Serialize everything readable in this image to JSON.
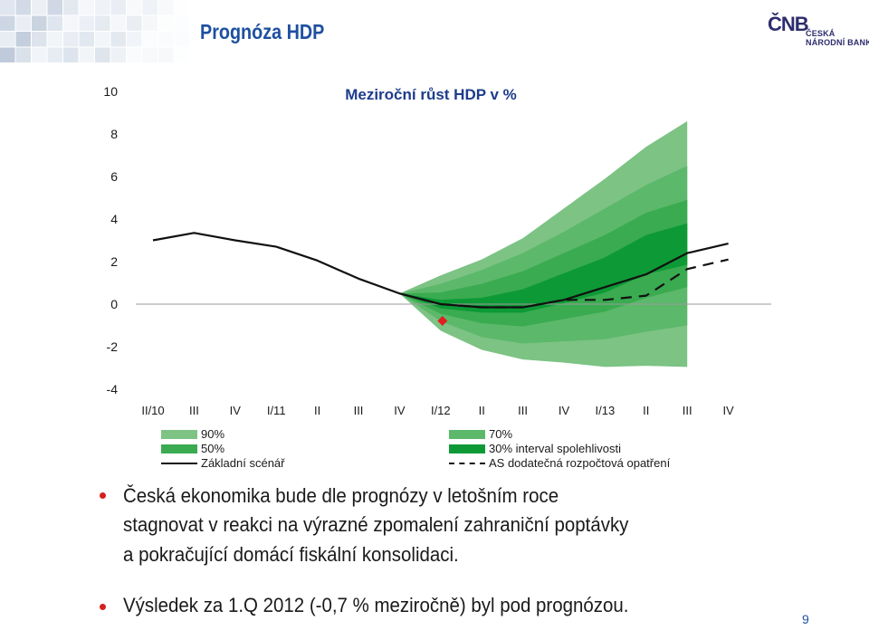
{
  "slide": {
    "title": "Prognóza HDP",
    "page_number": "9",
    "logo": {
      "mark": "ČNB",
      "line1": "ČESKÁ",
      "line2": "NÁRODNÍ BANKA"
    }
  },
  "chart_data": {
    "type": "area",
    "title": "Meziroční růst HDP v %",
    "xlabel": "",
    "ylabel": "",
    "categories": [
      "II/10",
      "III",
      "IV",
      "I/11",
      "II",
      "III",
      "IV",
      "I/12",
      "II",
      "III",
      "IV",
      "I/13",
      "II",
      "III",
      "IV"
    ],
    "ylim": [
      -4,
      10
    ],
    "yticks": [
      -4,
      -2,
      0,
      2,
      4,
      6,
      8,
      10
    ],
    "grid": false,
    "legend_position": "bottom",
    "legend": [
      {
        "label": "90%",
        "kind": "band",
        "color": "#7cc384"
      },
      {
        "label": "70%",
        "kind": "band",
        "color": "#5cb86a"
      },
      {
        "label": "50%",
        "kind": "band",
        "color": "#3aab50"
      },
      {
        "label": "30% interval spolehlivosti",
        "kind": "band",
        "color": "#0d9a36"
      },
      {
        "label": "Základní scénář",
        "kind": "line",
        "color": "#111111"
      },
      {
        "label": "AS dodatečná rozpočtová opatření",
        "kind": "dashed",
        "color": "#111111"
      }
    ],
    "series": [
      {
        "name": "Základní scénář",
        "values": [
          3.0,
          3.35,
          3.0,
          2.7,
          2.05,
          1.2,
          0.5,
          0.0,
          -0.15,
          -0.15,
          0.2,
          0.8,
          1.4,
          2.4,
          2.85
        ]
      },
      {
        "name": "AS dodatečná rozpočtová opatření",
        "values": [
          null,
          null,
          null,
          null,
          null,
          null,
          null,
          0.0,
          -0.15,
          -0.15,
          0.2,
          0.2,
          0.4,
          1.65,
          2.1
        ]
      }
    ],
    "bands": [
      {
        "name": "90%",
        "start_index": 6,
        "upper": [
          0.5,
          1.35,
          2.1,
          3.1,
          4.5,
          5.9,
          7.4,
          8.6
        ],
        "lower": [
          0.5,
          -1.25,
          -2.15,
          -2.6,
          -2.75,
          -2.95,
          -2.9,
          -2.95
        ]
      },
      {
        "name": "70%",
        "start_index": 6,
        "upper": [
          0.5,
          0.95,
          1.6,
          2.4,
          3.4,
          4.5,
          5.6,
          6.5
        ],
        "lower": [
          0.5,
          -0.8,
          -1.55,
          -1.85,
          -1.75,
          -1.65,
          -1.3,
          -1.0
        ]
      },
      {
        "name": "50%",
        "start_index": 6,
        "upper": [
          0.5,
          0.55,
          0.95,
          1.55,
          2.4,
          3.25,
          4.3,
          4.9
        ],
        "lower": [
          0.5,
          -0.45,
          -0.9,
          -1.05,
          -0.7,
          -0.35,
          0.3,
          0.8
        ]
      },
      {
        "name": "30% interval spolehlivosti",
        "start_index": 6,
        "upper": [
          0.5,
          0.2,
          0.3,
          0.7,
          1.45,
          2.2,
          3.25,
          3.8
        ],
        "lower": [
          0.5,
          -0.2,
          -0.4,
          -0.4,
          0.05,
          0.55,
          1.4,
          1.85
        ]
      }
    ],
    "markers": [
      {
        "name": "Výsledek za 1.Q 2012",
        "x": "I/12",
        "y": -0.7,
        "color": "#e02020",
        "shape": "diamond"
      }
    ]
  },
  "bullets": [
    {
      "lines": [
        "Česká ekonomika bude dle prognózy v letošním roce",
        "stagnovat v reakci na výrazné zpomalení zahraniční poptávky",
        "a pokračující domácí fiskální konsolidaci."
      ]
    },
    {
      "lines": [
        "Výsledek za 1.Q 2012 (-0,7 % meziročně) byl pod prognózou."
      ]
    }
  ],
  "colors": {
    "title_blue": "#1e50a0",
    "bullet_red": "#d42020"
  }
}
